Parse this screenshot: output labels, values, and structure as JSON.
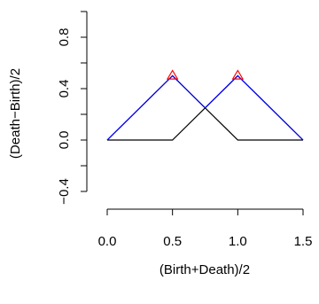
{
  "chart_data": {
    "type": "line",
    "title": "",
    "xlabel": "(Birth+Death)/2",
    "ylabel": "(Death−Birth)/2",
    "xlim": [
      0,
      1.5
    ],
    "ylim": [
      -0.4,
      1.0
    ],
    "x_ticks": [
      {
        "value": 0.0,
        "label": "0.0"
      },
      {
        "value": 0.5,
        "label": "0.5"
      },
      {
        "value": 1.0,
        "label": "1.0"
      },
      {
        "value": 1.5,
        "label": "1.5"
      }
    ],
    "y_ticks": [
      {
        "value": -0.4,
        "label": "−0.4"
      },
      {
        "value": 0.0,
        "label": "0.0"
      },
      {
        "value": 0.4,
        "label": "0.4"
      },
      {
        "value": 0.8,
        "label": "0.8"
      }
    ],
    "y_minor_ticks": [
      -0.2,
      0.2,
      0.6,
      1.0
    ],
    "grid": false,
    "series": [
      {
        "color": "#000000",
        "points": [
          [
            0.0,
            0.0
          ],
          [
            0.5,
            0.5
          ],
          [
            1.0,
            0.0
          ],
          [
            1.5,
            0.0
          ]
        ]
      },
      {
        "color": "#000000",
        "points": [
          [
            0.0,
            0.0
          ],
          [
            0.5,
            0.0
          ],
          [
            1.0,
            0.5
          ],
          [
            1.5,
            0.0
          ]
        ]
      },
      {
        "color": "#0000ff",
        "points": [
          [
            0.0,
            0.0
          ],
          [
            0.5,
            0.5
          ],
          [
            0.75,
            0.25
          ],
          [
            1.0,
            0.5
          ],
          [
            1.5,
            0.0
          ]
        ]
      }
    ],
    "markers": {
      "shape": "triangle-open",
      "color": "#ff0000",
      "points": [
        [
          0.5,
          0.5
        ],
        [
          1.0,
          0.5
        ]
      ]
    }
  }
}
